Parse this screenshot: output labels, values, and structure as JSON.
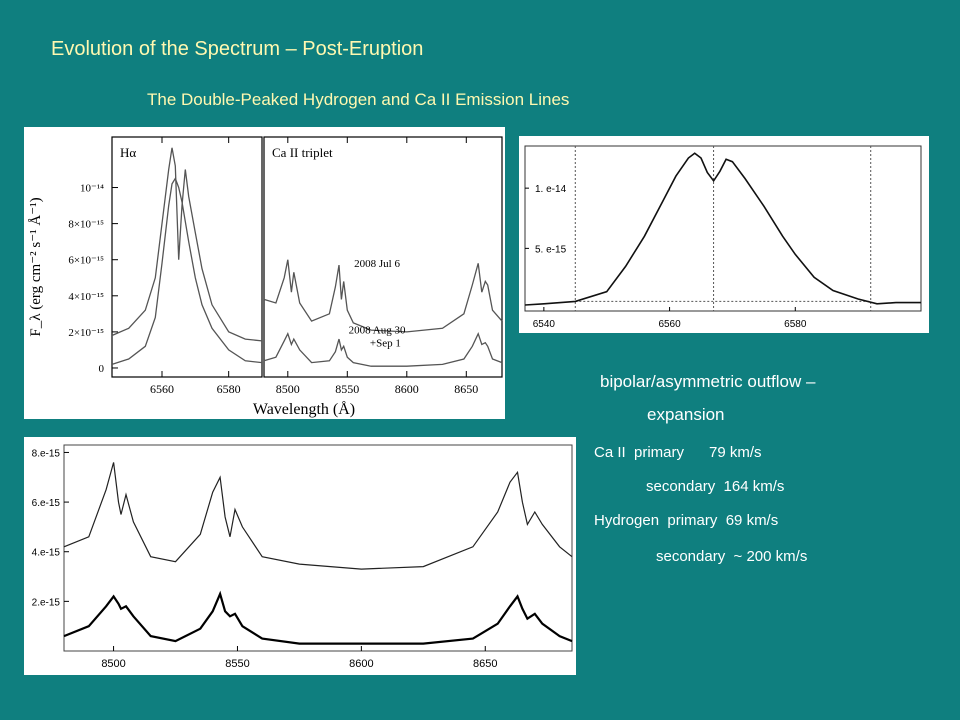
{
  "slide": {
    "title": "Evolution of the Spectrum – Post-Eruption",
    "subtitle": "The Double-Peaked Hydrogen and Ca II Emission Lines",
    "notes": [
      "bipolar/asymmetric outflow –",
      "expansion",
      "Ca II  primary      79 km/s",
      "secondary  164 km/s",
      "Hydrogen  primary  69 km/s",
      "secondary  ~ 200 km/s"
    ]
  },
  "colors": {
    "background": "#0f7f7f",
    "title": "#fff8b0",
    "text": "#ffffff",
    "line": "#555555"
  },
  "chart_data": [
    {
      "type": "line",
      "panels": [
        {
          "label": "Hα",
          "xlim": [
            6545,
            6590
          ],
          "xticks": [
            6560,
            6580
          ],
          "series": [
            {
              "name": "2008 Jul 6",
              "x": [
                6545,
                6550,
                6555,
                6558,
                6560,
                6562,
                6563,
                6564,
                6565,
                6566,
                6567,
                6568,
                6570,
                6572,
                6575,
                6580,
                6585,
                6590
              ],
              "y": [
                1.8e-15,
                2.2e-15,
                3.2e-15,
                5e-15,
                8e-15,
                1.1e-14,
                1.22e-14,
                1.12e-14,
                6e-15,
                9e-15,
                1.1e-14,
                9.5e-15,
                7.5e-15,
                5.5e-15,
                3.5e-15,
                2e-15,
                1.6e-15,
                1.5e-15
              ]
            },
            {
              "name": "2008 Aug 30 +Sep 1",
              "x": [
                6545,
                6550,
                6555,
                6558,
                6560,
                6562,
                6563,
                6564,
                6565,
                6566,
                6568,
                6570,
                6572,
                6575,
                6580,
                6585,
                6590
              ],
              "y": [
                2e-16,
                5e-16,
                1.2e-15,
                2.8e-15,
                5.8e-15,
                9e-15,
                1.02e-14,
                1.05e-14,
                1e-14,
                9.2e-15,
                7e-15,
                5e-15,
                3.5e-15,
                2.2e-15,
                1e-15,
                4e-16,
                3e-16
              ]
            }
          ]
        },
        {
          "label": "Ca II triplet",
          "xlim": [
            8480,
            8680
          ],
          "xticks": [
            8500,
            8550,
            8600,
            8650
          ],
          "series": [
            {
              "name": "2008 Jul 6",
              "x": [
                8480,
                8490,
                8497,
                8500,
                8503,
                8505,
                8510,
                8520,
                8535,
                8540,
                8543,
                8545,
                8547,
                8550,
                8555,
                8570,
                8600,
                8630,
                8648,
                8655,
                8660,
                8663,
                8666,
                8668,
                8672,
                8680
              ],
              "y": [
                3.8e-15,
                3.6e-15,
                5e-15,
                6e-15,
                4.2e-15,
                5.3e-15,
                3.6e-15,
                2.6e-15,
                3e-15,
                4.5e-15,
                5.7e-15,
                3.8e-15,
                4.8e-15,
                3.2e-15,
                2.5e-15,
                2.1e-15,
                2e-15,
                2.2e-15,
                3e-15,
                4.6e-15,
                5.8e-15,
                4.2e-15,
                4.8e-15,
                4.6e-15,
                3.2e-15,
                2.6e-15
              ]
            },
            {
              "name": "2008 Aug 30 +Sep 1",
              "x": [
                8480,
                8490,
                8497,
                8500,
                8503,
                8505,
                8510,
                8520,
                8535,
                8540,
                8543,
                8545,
                8547,
                8550,
                8555,
                8570,
                8600,
                8630,
                8648,
                8655,
                8660,
                8663,
                8666,
                8668,
                8672,
                8680
              ],
              "y": [
                4e-16,
                6e-16,
                1.5e-15,
                1.9e-15,
                1.3e-15,
                1.6e-15,
                1e-15,
                3e-16,
                4e-16,
                9e-16,
                1.6e-15,
                1e-15,
                1.2e-15,
                6e-16,
                3e-16,
                1e-16,
                1e-16,
                2e-16,
                5e-16,
                1.2e-15,
                1.9e-15,
                1.3e-15,
                1.4e-15,
                1.2e-15,
                5e-16,
                3e-16
              ]
            }
          ]
        }
      ],
      "ylabel": "F_λ (erg cm⁻² s⁻¹ Å⁻¹)",
      "yticks": [
        "10⁻¹⁴",
        "8×10⁻¹⁵",
        "6×10⁻¹⁵",
        "4×10⁻¹⁵",
        "2×10⁻¹⁵",
        "0"
      ],
      "ytick_values": [
        1e-14,
        8e-15,
        6e-15,
        4e-15,
        2e-15,
        0
      ],
      "ylim": [
        -5e-16,
        1.28e-14
      ],
      "xlabel": "Wavelength (Å)",
      "annotations": [
        "2008 Jul 6",
        "2008 Aug 30",
        "+Sep 1"
      ]
    },
    {
      "type": "line",
      "xlim": [
        6537,
        6600
      ],
      "xticks": [
        6540,
        6560,
        6580
      ],
      "yticks": [
        "1. e-14",
        "5. e-15"
      ],
      "ytick_values": [
        1e-14,
        5e-15
      ],
      "ylim": [
        -2e-16,
        1.35e-14
      ],
      "vlines": [
        6545,
        6567,
        6592
      ],
      "hline": 6e-16,
      "series": [
        {
          "x": [
            6537,
            6540,
            6545,
            6550,
            6553,
            6556,
            6559,
            6561,
            6563,
            6564,
            6565,
            6566,
            6567,
            6568,
            6569,
            6570,
            6572,
            6575,
            6578,
            6580,
            6583,
            6586,
            6590,
            6593,
            6596,
            6600
          ],
          "y": [
            3e-16,
            4e-16,
            6e-16,
            1.4e-15,
            3.5e-15,
            6e-15,
            9e-15,
            1.1e-14,
            1.25e-14,
            1.29e-14,
            1.25e-14,
            1.13e-14,
            1.06e-14,
            1.14e-14,
            1.24e-14,
            1.22e-14,
            1.08e-14,
            8.5e-15,
            6e-15,
            4.5e-15,
            2.6e-15,
            1.5e-15,
            8e-16,
            4e-16,
            5e-16,
            5e-16
          ]
        }
      ]
    },
    {
      "type": "line",
      "xlim": [
        8480,
        8685
      ],
      "xticks": [
        8500,
        8550,
        8600,
        8650
      ],
      "yticks": [
        "8.e-15",
        "6.e-15",
        "4.e-15",
        "2.e-15"
      ],
      "ytick_values": [
        8e-15,
        6e-15,
        4e-15,
        2e-15
      ],
      "ylim": [
        0,
        8.3e-15
      ],
      "series": [
        {
          "x": [
            8480,
            8490,
            8497,
            8500,
            8502,
            8503,
            8505,
            8508,
            8515,
            8525,
            8535,
            8540,
            8543,
            8545,
            8547,
            8549,
            8552,
            8560,
            8575,
            8600,
            8625,
            8645,
            8655,
            8660,
            8663,
            8665,
            8667,
            8670,
            8673,
            8680,
            8685
          ],
          "y": [
            4.2e-15,
            4.6e-15,
            6.5e-15,
            7.6e-15,
            6e-15,
            5.5e-15,
            6.3e-15,
            5.2e-15,
            3.8e-15,
            3.6e-15,
            4.7e-15,
            6.4e-15,
            7e-15,
            5.4e-15,
            4.6e-15,
            5.7e-15,
            5e-15,
            3.8e-15,
            3.5e-15,
            3.3e-15,
            3.4e-15,
            4.2e-15,
            5.6e-15,
            6.8e-15,
            7.2e-15,
            6e-15,
            5.1e-15,
            5.6e-15,
            5.1e-15,
            4.2e-15,
            3.8e-15
          ]
        },
        {
          "x": [
            8480,
            8490,
            8497,
            8500,
            8502,
            8503,
            8505,
            8508,
            8515,
            8525,
            8535,
            8540,
            8543,
            8545,
            8547,
            8549,
            8552,
            8560,
            8575,
            8600,
            8625,
            8645,
            8655,
            8660,
            8663,
            8665,
            8667,
            8670,
            8673,
            8680,
            8685
          ],
          "y": [
            6e-16,
            1e-15,
            1.8e-15,
            2.2e-15,
            1.9e-15,
            1.7e-15,
            1.8e-15,
            1.4e-15,
            6e-16,
            4e-16,
            9e-16,
            1.6e-15,
            2.3e-15,
            1.6e-15,
            1.4e-15,
            1.5e-15,
            1e-15,
            5e-16,
            3e-16,
            3e-16,
            3e-16,
            5e-16,
            1.1e-15,
            1.8e-15,
            2.2e-15,
            1.7e-15,
            1.3e-15,
            1.5e-15,
            1.1e-15,
            6e-16,
            4e-16
          ]
        }
      ]
    }
  ]
}
